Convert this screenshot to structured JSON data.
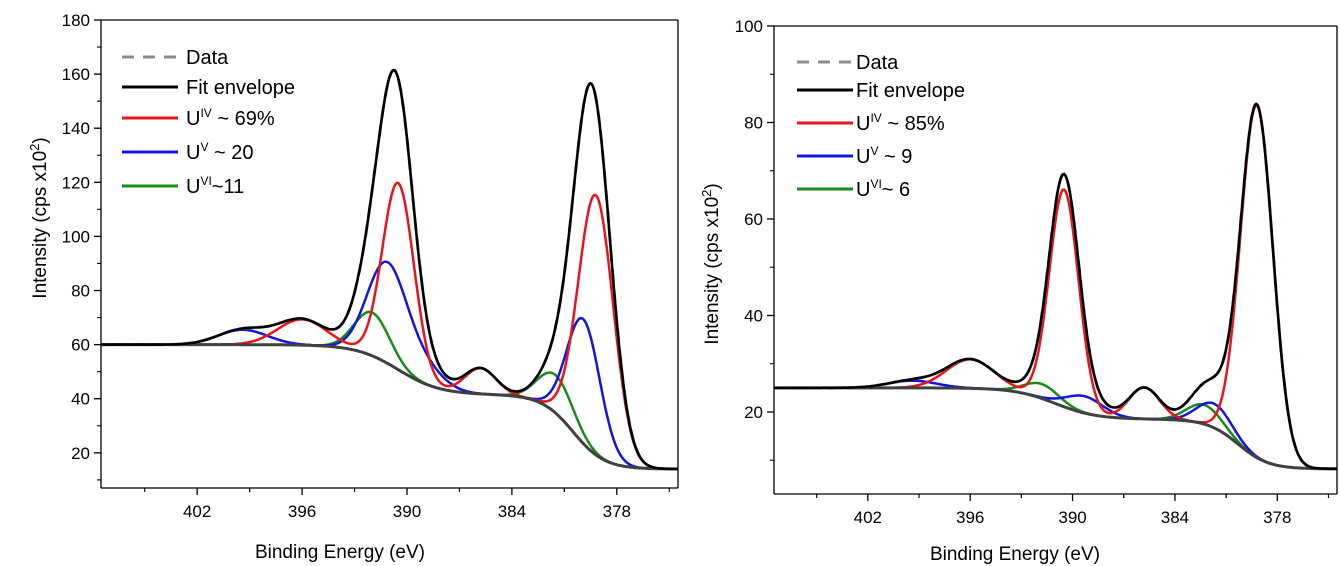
{
  "chart_data": [
    {
      "type": "line",
      "xlabel": "Binding Energy (eV)",
      "ylabel": "Intensity (cps x10",
      "ylabel_sup": "2",
      "ylabel_close": ")",
      "xlim": [
        407.5,
        374.5
      ],
      "ylim": [
        7,
        180
      ],
      "x_ticks": [
        402,
        396,
        390,
        384,
        378
      ],
      "y_ticks": [
        20,
        40,
        60,
        80,
        100,
        120,
        140,
        160,
        180
      ],
      "background": {
        "left": 60,
        "step1_center": 390.5,
        "step1_drop": 18.5,
        "step1_width": 1.2,
        "mid_slope": 0.35,
        "step2_center": 380.5,
        "step2_drop": 27.5,
        "step2_width": 0.9
      },
      "peaks": [
        {
          "series": "red",
          "center": 396.0,
          "height": 9.5,
          "width": 1.4
        },
        {
          "series": "red",
          "center": 390.5,
          "height": 69,
          "width": 0.9
        },
        {
          "series": "red",
          "center": 385.8,
          "height": 9.5,
          "width": 0.9
        },
        {
          "series": "red",
          "center": 379.2,
          "height": 96,
          "width": 1.0
        },
        {
          "series": "blue",
          "center": 399.4,
          "height": 5.5,
          "width": 1.4
        },
        {
          "series": "blue",
          "center": 391.2,
          "height": 35,
          "width": 1.1
        },
        {
          "series": "blue",
          "center": 389.3,
          "height": 8,
          "width": 1.2
        },
        {
          "series": "blue",
          "center": 379.9,
          "height": 46,
          "width": 0.95
        },
        {
          "series": "green",
          "center": 392.0,
          "height": 16,
          "width": 1.0
        },
        {
          "series": "green",
          "center": 381.5,
          "height": 14,
          "width": 1.0
        }
      ],
      "legend": {
        "data": "Data",
        "envelope": "Fit envelope",
        "red_base": "U",
        "red_sup": "IV",
        "red_text": " ~ 69%",
        "blue_base": "U",
        "blue_sup": "V",
        "blue_text": " ~ 20",
        "green_base": "U",
        "green_sup": "VI",
        "green_text": "~11"
      }
    },
    {
      "type": "line",
      "xlabel": "Binding Energy (eV)",
      "ylabel": "Intensity (cps x10",
      "ylabel_sup": "2",
      "ylabel_close": ")",
      "xlim": [
        407.5,
        374.5
      ],
      "ylim": [
        3,
        100
      ],
      "x_ticks": [
        402,
        396,
        390,
        384,
        378
      ],
      "y_ticks": [
        20,
        40,
        60,
        80,
        100
      ],
      "background": {
        "left": 25,
        "step1_center": 391.0,
        "step1_drop": 6.5,
        "step1_width": 1.2,
        "mid_slope": 0.25,
        "step2_center": 380.3,
        "step2_drop": 10.3,
        "step2_width": 0.9
      },
      "peaks": [
        {
          "series": "red",
          "center": 396.0,
          "height": 6,
          "width": 1.4
        },
        {
          "series": "red",
          "center": 390.5,
          "height": 45,
          "width": 0.85
        },
        {
          "series": "red",
          "center": 385.8,
          "height": 6.5,
          "width": 0.9
        },
        {
          "series": "red",
          "center": 379.2,
          "height": 73,
          "width": 0.95
        },
        {
          "series": "blue",
          "center": 399.4,
          "height": 1.5,
          "width": 1.4
        },
        {
          "series": "blue",
          "center": 389.3,
          "height": 3.5,
          "width": 1.1
        },
        {
          "series": "blue",
          "center": 381.7,
          "height": 5,
          "width": 1.0
        },
        {
          "series": "green",
          "center": 391.8,
          "height": 3,
          "width": 1.0
        },
        {
          "series": "green",
          "center": 382.3,
          "height": 4,
          "width": 1.0
        }
      ],
      "legend": {
        "data": "Data",
        "envelope": "Fit envelope",
        "red_base": "U",
        "red_sup": "IV",
        "red_text": " ~ 85%",
        "blue_base": "U",
        "blue_sup": "V",
        "blue_text": " ~ 9",
        "green_base": "U",
        "green_sup": "VI",
        "green_text": "~ 6"
      }
    }
  ],
  "colors": {
    "data": "#8c8c8c",
    "envelope": "#000000",
    "background": "#404040",
    "red": "#e8141c",
    "blue": "#1414e0",
    "green": "#1a8a1a"
  }
}
